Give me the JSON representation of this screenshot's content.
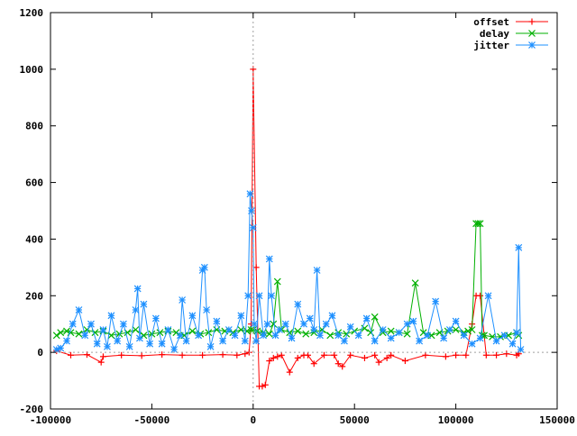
{
  "chart_data": {
    "type": "line",
    "title": "",
    "xlabel": "",
    "ylabel": "",
    "xlim": [
      -100000,
      150000
    ],
    "ylim": [
      -200,
      1200
    ],
    "xticks": [
      -100000,
      -50000,
      0,
      50000,
      100000,
      150000
    ],
    "yticks": [
      -200,
      0,
      200,
      400,
      600,
      800,
      1000,
      1200
    ],
    "xtick_labels": [
      "-100000",
      "-50000",
      "0",
      "50000",
      "100000",
      "150000"
    ],
    "ytick_labels": [
      "-200",
      "0",
      "200",
      "400",
      "600",
      "800",
      "1000",
      "1200"
    ],
    "grid": false,
    "zero_axes": "dotted",
    "legend_position": "top-right",
    "series": [
      {
        "name": "offset",
        "color": "#ff0000",
        "marker": "plus",
        "x": [
          -97000,
          -90000,
          -82000,
          -75000,
          -74000,
          -65000,
          -55000,
          -45000,
          -35000,
          -25000,
          -15000,
          -8000,
          -4000,
          -2000,
          -1000,
          0,
          1500,
          3000,
          4500,
          6000,
          8000,
          10000,
          12000,
          14000,
          18000,
          22000,
          25000,
          27000,
          30000,
          35000,
          40000,
          42000,
          44000,
          48000,
          55000,
          60000,
          62000,
          66000,
          68000,
          75000,
          85000,
          95000,
          100000,
          105000,
          108000,
          110000,
          112000,
          115000,
          120000,
          125000,
          130000,
          131000
        ],
        "y": [
          5,
          -10,
          -8,
          -35,
          -15,
          -10,
          -12,
          -8,
          -10,
          -10,
          -8,
          -10,
          -5,
          0,
          100,
          1000,
          300,
          -120,
          -120,
          -115,
          -30,
          -20,
          -15,
          -10,
          -70,
          -20,
          -10,
          -10,
          -40,
          -10,
          -10,
          -40,
          -50,
          -10,
          -20,
          -10,
          -35,
          -20,
          -10,
          -30,
          -10,
          -15,
          -10,
          -10,
          100,
          200,
          200,
          -10,
          -10,
          -5,
          -10,
          -5
        ]
      },
      {
        "name": "delay",
        "color": "#00b000",
        "marker": "x",
        "x": [
          -97000,
          -95000,
          -92000,
          -90000,
          -86000,
          -82000,
          -78000,
          -74000,
          -70000,
          -66000,
          -62000,
          -58000,
          -54000,
          -50000,
          -46000,
          -42000,
          -38000,
          -34000,
          -30000,
          -26000,
          -22000,
          -18000,
          -14000,
          -10000,
          -6000,
          -3000,
          -1000,
          0,
          2000,
          5000,
          8000,
          10000,
          12000,
          14000,
          18000,
          22000,
          26000,
          30000,
          34000,
          38000,
          42000,
          46000,
          50000,
          55000,
          58000,
          60000,
          64000,
          68000,
          72000,
          76000,
          80000,
          84000,
          88000,
          92000,
          96000,
          100000,
          104000,
          106000,
          108000,
          110000,
          111000,
          112000,
          113000,
          114000,
          118000,
          122000,
          126000,
          130000,
          131000
        ],
        "y": [
          60,
          70,
          75,
          70,
          65,
          80,
          70,
          75,
          60,
          65,
          70,
          80,
          60,
          65,
          70,
          75,
          70,
          60,
          75,
          65,
          70,
          80,
          75,
          70,
          80,
          75,
          80,
          80,
          75,
          70,
          65,
          100,
          250,
          80,
          70,
          75,
          65,
          70,
          80,
          60,
          70,
          65,
          75,
          85,
          70,
          125,
          70,
          75,
          70,
          65,
          245,
          70,
          60,
          70,
          75,
          80,
          70,
          75,
          80,
          455,
          455,
          455,
          60,
          60,
          55,
          55,
          60,
          70,
          60
        ]
      },
      {
        "name": "jitter",
        "color": "#1e90ff",
        "marker": "star",
        "x": [
          -97000,
          -95000,
          -92000,
          -89000,
          -86000,
          -83000,
          -80000,
          -77000,
          -74000,
          -72000,
          -70000,
          -67000,
          -64000,
          -61000,
          -58000,
          -57000,
          -56000,
          -54000,
          -51000,
          -48000,
          -45000,
          -42000,
          -39000,
          -36000,
          -35000,
          -33000,
          -30000,
          -27000,
          -25000,
          -24000,
          -23000,
          -21000,
          -18000,
          -15000,
          -12000,
          -9000,
          -6000,
          -4000,
          -2500,
          -1500,
          -800,
          0,
          500,
          1500,
          3000,
          5000,
          7000,
          8000,
          9000,
          11000,
          13000,
          16000,
          19000,
          22000,
          25000,
          28000,
          30000,
          31500,
          33000,
          36000,
          39000,
          42000,
          45000,
          48000,
          52000,
          56000,
          60000,
          64000,
          68000,
          72000,
          76000,
          79000,
          82000,
          86000,
          90000,
          94000,
          97000,
          100000,
          104000,
          108000,
          112000,
          116000,
          120000,
          124000,
          128000,
          130000,
          131000,
          132000
        ],
        "y": [
          10,
          15,
          40,
          100,
          150,
          60,
          100,
          30,
          80,
          20,
          130,
          40,
          100,
          20,
          150,
          225,
          50,
          170,
          30,
          120,
          30,
          80,
          10,
          60,
          185,
          40,
          130,
          60,
          290,
          300,
          150,
          20,
          110,
          40,
          80,
          60,
          130,
          40,
          200,
          560,
          500,
          440,
          100,
          40,
          200,
          60,
          100,
          330,
          200,
          60,
          80,
          100,
          50,
          170,
          100,
          120,
          80,
          290,
          60,
          100,
          130,
          60,
          40,
          90,
          60,
          120,
          40,
          80,
          50,
          70,
          100,
          110,
          40,
          60,
          180,
          50,
          80,
          110,
          60,
          30,
          50,
          200,
          40,
          60,
          30,
          70,
          370,
          10
        ]
      }
    ]
  }
}
